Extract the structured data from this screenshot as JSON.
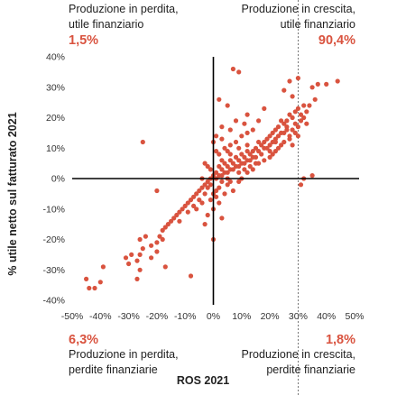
{
  "quadrants": {
    "top_left": {
      "line1": "Produzione in perdita,",
      "line2": "utile finanziario",
      "pct": "1,5%"
    },
    "top_right": {
      "line1": "Produzione in crescita,",
      "line2": "utile finanziario",
      "pct": "90,4%"
    },
    "bottom_left": {
      "line1": "Produzione in perdita,",
      "line2": "perdite finanziarie",
      "pct": "6,3%"
    },
    "bottom_right": {
      "line1": "Produzione in crescita,",
      "line2": "perdite finanziarie",
      "pct": "1,8%"
    }
  },
  "colors": {
    "points": "#d9533f",
    "pct_text": "#d9533f",
    "axis": "#000000",
    "reference_line": "#555555"
  },
  "chart_data": {
    "type": "scatter",
    "title": "",
    "xlabel": "ROS 2021",
    "ylabel": "% utile netto sul fatturato 2021",
    "xlim": [
      -0.5,
      0.5
    ],
    "ylim": [
      -0.4,
      0.4
    ],
    "x_ticks": [
      "-50%",
      "-40%",
      "-30%",
      "-20%",
      "-10%",
      "0%",
      "10%",
      "20%",
      "30%",
      "40%",
      "50%"
    ],
    "y_ticks": [
      "40%",
      "30%",
      "20%",
      "10%",
      "0%",
      "-10%",
      "-20%",
      "-30%",
      "-40%"
    ],
    "reference_line_x": 0.3,
    "series": [
      {
        "points": [
          [
            0.44,
            0.32
          ],
          [
            0.4,
            0.31
          ],
          [
            0.37,
            0.31
          ],
          [
            0.35,
            0.3
          ],
          [
            0.36,
            0.26
          ],
          [
            0.3,
            0.33
          ],
          [
            0.27,
            0.32
          ],
          [
            0.28,
            0.27
          ],
          [
            0.25,
            0.29
          ],
          [
            0.32,
            0.24
          ],
          [
            0.34,
            0.24
          ],
          [
            0.33,
            0.22
          ],
          [
            0.3,
            0.23
          ],
          [
            0.29,
            0.22
          ],
          [
            0.31,
            0.21
          ],
          [
            0.28,
            0.2
          ],
          [
            0.27,
            0.21
          ],
          [
            0.26,
            0.19
          ],
          [
            0.25,
            0.18
          ],
          [
            0.26,
            0.17
          ],
          [
            0.24,
            0.19
          ],
          [
            0.23,
            0.17
          ],
          [
            0.22,
            0.16
          ],
          [
            0.24,
            0.15
          ],
          [
            0.21,
            0.15
          ],
          [
            0.2,
            0.14
          ],
          [
            0.22,
            0.13
          ],
          [
            0.19,
            0.13
          ],
          [
            0.18,
            0.12
          ],
          [
            0.21,
            0.12
          ],
          [
            0.17,
            0.11
          ],
          [
            0.16,
            0.12
          ],
          [
            0.18,
            0.1
          ],
          [
            0.15,
            0.1
          ],
          [
            0.14,
            0.09
          ],
          [
            0.16,
            0.09
          ],
          [
            0.13,
            0.08
          ],
          [
            0.12,
            0.09
          ],
          [
            0.14,
            0.07
          ],
          [
            0.11,
            0.07
          ],
          [
            0.1,
            0.08
          ],
          [
            0.12,
            0.06
          ],
          [
            0.09,
            0.06
          ],
          [
            0.08,
            0.07
          ],
          [
            0.1,
            0.05
          ],
          [
            0.07,
            0.05
          ],
          [
            0.06,
            0.06
          ],
          [
            0.08,
            0.04
          ],
          [
            0.05,
            0.04
          ],
          [
            0.04,
            0.05
          ],
          [
            0.06,
            0.03
          ],
          [
            0.03,
            0.03
          ],
          [
            0.02,
            0.04
          ],
          [
            0.04,
            0.02
          ],
          [
            0.01,
            0.02
          ],
          [
            0.02,
            0.01
          ],
          [
            0.03,
            0.01
          ],
          [
            0.0,
            0.01
          ],
          [
            0.01,
            0.0
          ],
          [
            0.05,
            0.02
          ],
          [
            0.07,
            0.03
          ],
          [
            0.09,
            0.04
          ],
          [
            0.11,
            0.05
          ],
          [
            0.13,
            0.06
          ],
          [
            0.15,
            0.07
          ],
          [
            0.17,
            0.08
          ],
          [
            0.19,
            0.1
          ],
          [
            0.2,
            0.11
          ],
          [
            0.22,
            0.12
          ],
          [
            0.23,
            0.14
          ],
          [
            0.25,
            0.15
          ],
          [
            0.26,
            0.16
          ],
          [
            0.08,
            0.12
          ],
          [
            0.1,
            0.14
          ],
          [
            0.12,
            0.15
          ],
          [
            0.14,
            0.16
          ],
          [
            0.06,
            0.11
          ],
          [
            0.05,
            0.09
          ],
          [
            0.04,
            0.1
          ],
          [
            0.03,
            0.13
          ],
          [
            0.02,
            0.08
          ],
          [
            0.09,
            0.02
          ],
          [
            0.11,
            0.03
          ],
          [
            0.13,
            0.04
          ],
          [
            0.15,
            0.05
          ],
          [
            0.2,
            0.09
          ],
          [
            0.24,
            0.11
          ],
          [
            0.27,
            0.13
          ],
          [
            0.29,
            0.15
          ],
          [
            0.3,
            0.17
          ],
          [
            0.07,
            0.36
          ],
          [
            0.09,
            0.35
          ],
          [
            0.02,
            0.26
          ],
          [
            0.05,
            0.24
          ],
          [
            0.08,
            0.19
          ],
          [
            0.12,
            0.21
          ],
          [
            0.18,
            0.23
          ],
          [
            0.16,
            0.19
          ],
          [
            0.11,
            0.18
          ],
          [
            0.06,
            0.16
          ],
          [
            0.03,
            0.17
          ],
          [
            0.01,
            0.14
          ],
          [
            0.0,
            0.12
          ],
          [
            0.01,
            0.09
          ],
          [
            0.03,
            0.06
          ],
          [
            0.06,
            0.08
          ],
          [
            0.09,
            0.1
          ],
          [
            0.12,
            0.11
          ],
          [
            -0.01,
            0.0
          ],
          [
            -0.02,
            -0.01
          ],
          [
            -0.01,
            -0.02
          ],
          [
            -0.03,
            -0.02
          ],
          [
            -0.02,
            -0.03
          ],
          [
            -0.04,
            -0.03
          ],
          [
            -0.03,
            -0.05
          ],
          [
            -0.05,
            -0.04
          ],
          [
            -0.06,
            -0.05
          ],
          [
            -0.05,
            -0.07
          ],
          [
            -0.07,
            -0.06
          ],
          [
            -0.08,
            -0.07
          ],
          [
            -0.07,
            -0.09
          ],
          [
            -0.09,
            -0.08
          ],
          [
            -0.1,
            -0.09
          ],
          [
            -0.09,
            -0.11
          ],
          [
            -0.11,
            -0.1
          ],
          [
            -0.12,
            -0.11
          ],
          [
            -0.13,
            -0.12
          ],
          [
            -0.12,
            -0.14
          ],
          [
            -0.14,
            -0.13
          ],
          [
            -0.15,
            -0.14
          ],
          [
            -0.16,
            -0.15
          ],
          [
            -0.17,
            -0.16
          ],
          [
            -0.18,
            -0.17
          ],
          [
            -0.19,
            -0.19
          ],
          [
            -0.2,
            -0.21
          ],
          [
            -0.22,
            -0.22
          ],
          [
            -0.24,
            -0.19
          ],
          [
            -0.26,
            -0.2
          ],
          [
            -0.18,
            -0.2
          ],
          [
            -0.2,
            -0.24
          ],
          [
            -0.25,
            -0.23
          ],
          [
            -0.26,
            -0.25
          ],
          [
            -0.29,
            -0.25
          ],
          [
            -0.31,
            -0.26
          ],
          [
            -0.3,
            -0.28
          ],
          [
            -0.27,
            -0.27
          ],
          [
            -0.26,
            -0.3
          ],
          [
            -0.27,
            -0.33
          ],
          [
            -0.22,
            -0.26
          ],
          [
            -0.17,
            -0.29
          ],
          [
            -0.08,
            -0.32
          ],
          [
            -0.45,
            -0.33
          ],
          [
            -0.44,
            -0.36
          ],
          [
            -0.42,
            -0.36
          ],
          [
            -0.4,
            -0.34
          ],
          [
            -0.39,
            -0.29
          ],
          [
            -0.25,
            0.12
          ],
          [
            -0.2,
            -0.04
          ],
          [
            -0.03,
            0.05
          ],
          [
            -0.02,
            0.04
          ],
          [
            -0.01,
            0.03
          ],
          [
            -0.04,
            0.0
          ],
          [
            0.03,
            -0.01
          ],
          [
            0.05,
            -0.02
          ],
          [
            0.02,
            -0.03
          ],
          [
            0.04,
            -0.05
          ],
          [
            0.01,
            -0.04
          ],
          [
            0.06,
            -0.01
          ],
          [
            0.07,
            -0.04
          ],
          [
            0.01,
            -0.06
          ],
          [
            0.02,
            -0.08
          ],
          [
            0.0,
            -0.05
          ],
          [
            -0.01,
            -0.07
          ],
          [
            -0.04,
            -0.08
          ],
          [
            -0.06,
            -0.1
          ],
          [
            -0.02,
            -0.12
          ],
          [
            -0.03,
            -0.15
          ],
          [
            0.0,
            -0.2
          ],
          [
            0.03,
            -0.13
          ],
          [
            0.0,
            -0.1
          ],
          [
            0.31,
            -0.02
          ],
          [
            0.32,
            0.0
          ],
          [
            0.35,
            0.01
          ],
          [
            0.09,
            -0.01
          ],
          [
            0.05,
            0.0
          ],
          [
            0.1,
            0.0
          ],
          [
            0.12,
            0.02
          ],
          [
            0.14,
            0.03
          ],
          [
            0.16,
            0.05
          ],
          [
            0.18,
            0.06
          ],
          [
            0.2,
            0.07
          ],
          [
            0.21,
            0.08
          ],
          [
            0.22,
            0.09
          ],
          [
            0.23,
            0.1
          ],
          [
            0.25,
            0.12
          ],
          [
            0.27,
            0.14
          ],
          [
            0.28,
            0.16
          ],
          [
            0.29,
            0.18
          ],
          [
            0.31,
            0.19
          ],
          [
            0.32,
            0.2
          ],
          [
            0.33,
            0.18
          ],
          [
            0.3,
            0.14
          ],
          [
            0.28,
            0.11
          ]
        ]
      }
    ]
  }
}
